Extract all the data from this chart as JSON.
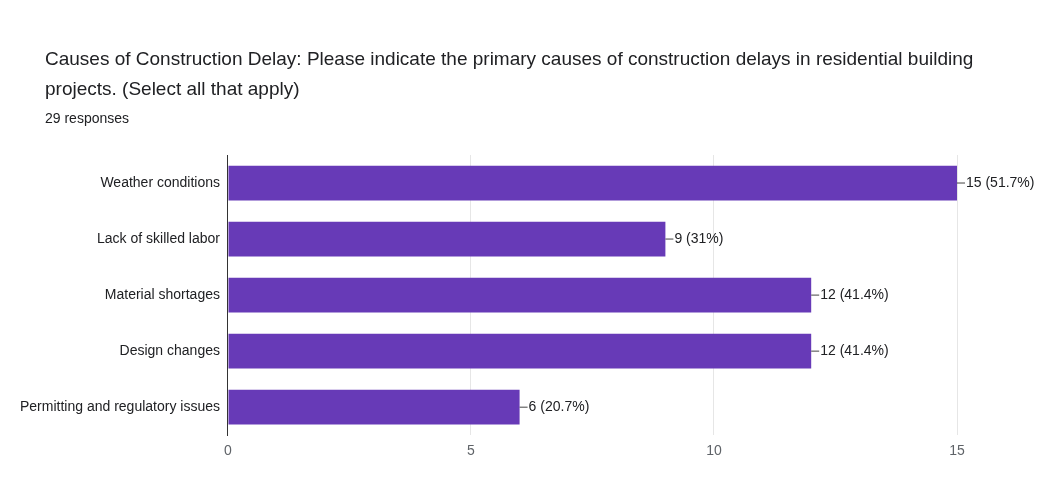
{
  "chart_data": {
    "type": "bar",
    "orientation": "horizontal",
    "title": "Causes of Construction Delay: Please indicate the primary causes of construction delays in residential building projects. (Select all that apply)",
    "subtitle": "29 responses",
    "categories": [
      "Weather conditions",
      "Lack of skilled labor",
      "Material shortages",
      "Design changes",
      "Permitting and regulatory issues"
    ],
    "values": [
      15,
      9,
      12,
      12,
      6
    ],
    "value_labels": [
      "15 (51.7%)",
      "9 (31%)",
      "12 (41.4%)",
      "12 (41.4%)",
      "6 (20.7%)"
    ],
    "color": "#673ab7",
    "xlim": [
      0,
      15
    ],
    "xticks": [
      0,
      5,
      10,
      15
    ],
    "grid": "x",
    "legend": false
  }
}
